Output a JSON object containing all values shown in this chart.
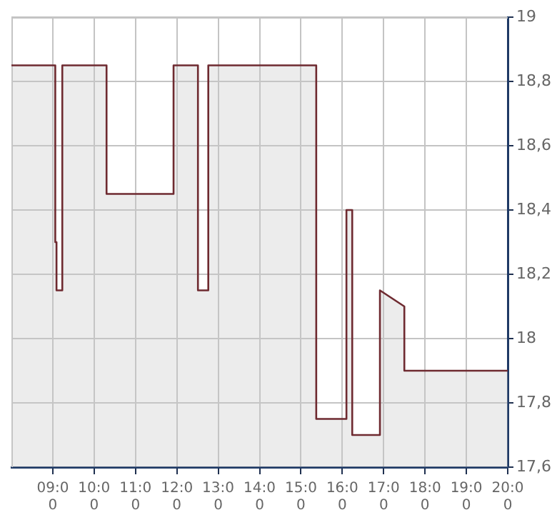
{
  "chart_data": {
    "type": "area",
    "x": [
      8,
      9.06,
      9.06,
      9.09,
      9.09,
      9.23,
      9.23,
      10.3,
      10.3,
      11.92,
      11.92,
      12.51,
      12.51,
      12.76,
      12.76,
      15.37,
      15.37,
      16.1,
      16.1,
      16.24,
      16.24,
      16.91,
      16.91,
      17.5,
      17.5,
      20
    ],
    "series": [
      {
        "color": "#6e2a30",
        "values": [
          18.85,
          18.85,
          18.3,
          18.3,
          18.15,
          18.15,
          18.85,
          18.85,
          18.45,
          18.45,
          18.85,
          18.85,
          18.15,
          18.15,
          18.85,
          18.85,
          17.75,
          17.75,
          18.4,
          18.4,
          17.7,
          17.7,
          18.15,
          18.1,
          17.9,
          17.9
        ]
      }
    ],
    "xlim": [
      8,
      20
    ],
    "xticks": [
      {
        "value": 9,
        "label": "09:00"
      },
      {
        "value": 10,
        "label": "10:00"
      },
      {
        "value": 11,
        "label": "11:00"
      },
      {
        "value": 12,
        "label": "12:00"
      },
      {
        "value": 13,
        "label": "13:00"
      },
      {
        "value": 14,
        "label": "14:00"
      },
      {
        "value": 15,
        "label": "15:00"
      },
      {
        "value": 16,
        "label": "16:00"
      },
      {
        "value": 17,
        "label": "17:00"
      },
      {
        "value": 18,
        "label": "18:00"
      },
      {
        "value": 19,
        "label": "19:00"
      },
      {
        "value": 20,
        "label": "20:00"
      }
    ],
    "ylim": [
      17.6,
      19
    ],
    "yticks": [
      {
        "value": 17.6,
        "label": "17,6"
      },
      {
        "value": 17.8,
        "label": "17,8"
      },
      18,
      {
        "value": 18.2,
        "label": "18,2"
      },
      {
        "value": 18.4,
        "label": "18,4"
      },
      {
        "value": 18.6,
        "label": "18,6"
      },
      {
        "value": 18.8,
        "label": "18,8"
      },
      19
    ],
    "grid": true,
    "legend": false,
    "marker": "none",
    "line_style": "solid"
  }
}
